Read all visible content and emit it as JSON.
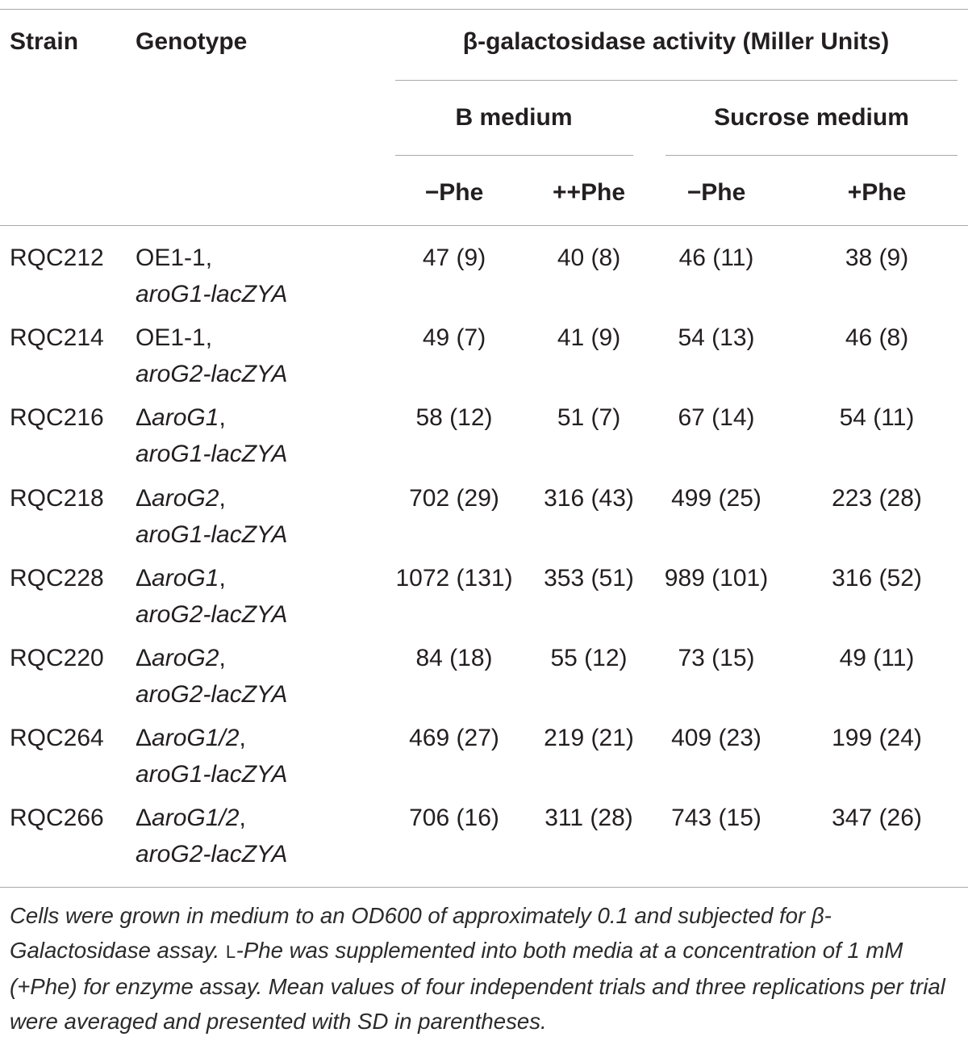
{
  "table": {
    "headers": {
      "strain": "Strain",
      "genotype": "Genotype",
      "activity": "β-galactosidase activity (Miller Units)",
      "b_medium": "B medium",
      "sucrose_medium": "Sucrose medium",
      "col_minus_phe_b": "−Phe",
      "col_plus_phe_b": "++Phe",
      "col_minus_phe_s": "−Phe",
      "col_plus_phe_s": "+Phe"
    },
    "rows": [
      {
        "strain": "RQC212",
        "geno_line1": "OE1-1,",
        "geno_line2": "aroG1-lacZYA",
        "b_minus": "47 (9)",
        "b_plus": "40 (8)",
        "s_minus": "46 (11)",
        "s_plus": "38 (9)"
      },
      {
        "strain": "RQC214",
        "geno_line1": "OE1-1,",
        "geno_line2": "aroG2-lacZYA",
        "b_minus": "49 (7)",
        "b_plus": "41 (9)",
        "s_minus": "54 (13)",
        "s_plus": "46 (8)"
      },
      {
        "strain": "RQC216",
        "geno_line1": "ΔaroG1,",
        "geno_line2": "aroG1-lacZYA",
        "b_minus": "58 (12)",
        "b_plus": "51 (7)",
        "s_minus": "67 (14)",
        "s_plus": "54 (11)"
      },
      {
        "strain": "RQC218",
        "geno_line1": "ΔaroG2,",
        "geno_line2": "aroG1-lacZYA",
        "b_minus": "702 (29)",
        "b_plus": "316 (43)",
        "s_minus": "499 (25)",
        "s_plus": "223 (28)"
      },
      {
        "strain": "RQC228",
        "geno_line1": "ΔaroG1,",
        "geno_line2": "aroG2-lacZYA",
        "b_minus": "1072 (131)",
        "b_plus": "353 (51)",
        "s_minus": "989 (101)",
        "s_plus": "316 (52)"
      },
      {
        "strain": "RQC220",
        "geno_line1": "ΔaroG2,",
        "geno_line2": "aroG2-lacZYA",
        "b_minus": "84 (18)",
        "b_plus": "55 (12)",
        "s_minus": "73 (15)",
        "s_plus": "49 (11)"
      },
      {
        "strain": "RQC264",
        "geno_line1": "ΔaroG1/2,",
        "geno_line2": "aroG1-lacZYA",
        "b_minus": "469 (27)",
        "b_plus": "219 (21)",
        "s_minus": "409 (23)",
        "s_plus": "199 (24)"
      },
      {
        "strain": "RQC266",
        "geno_line1": "ΔaroG1/2,",
        "geno_line2": "aroG2-lacZYA",
        "b_minus": "706 (16)",
        "b_plus": "311 (28)",
        "s_minus": "743 (15)",
        "s_plus": "347 (26)"
      }
    ]
  },
  "caption": {
    "part1": "Cells were grown in medium to an OD600 of approximately 0.1 and subjected for β-Galactosidase assay. ",
    "lphe_prefix": "L",
    "part2": "-Phe was supplemented into both media at a concentration of 1 mM (+Phe) for enzyme assay. Mean values of four independent trials and three replications per trial were averaged and presented with SD in parentheses."
  }
}
